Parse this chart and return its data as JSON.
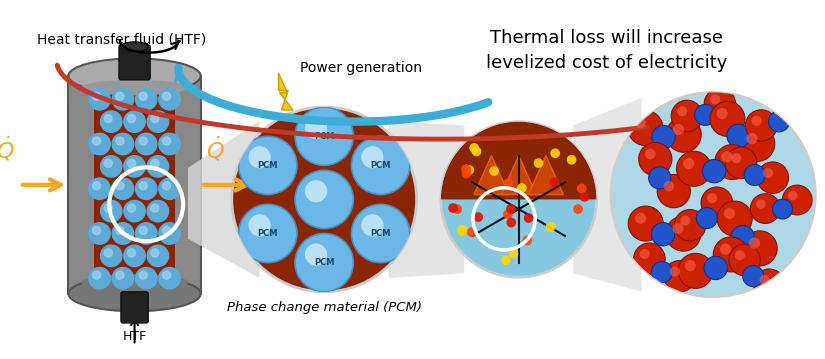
{
  "bg_color": "#ffffff",
  "title_text": "Thermal loss will increase\nlevelized cost of electricity",
  "title_fontsize": 13,
  "htf_label": "Heat transfer fluid (HTF)",
  "power_gen_label": "Power generation",
  "pcm_label": "Phase change material (PCM)",
  "htf_bottom_label": "HTF",
  "arrow_blue_color": "#3BADD6",
  "arrow_orange_color": "#F5A623",
  "lightning_color": "#F5C518",
  "arc_red_color": "#C0392B",
  "molecule_red": "#CC2200",
  "molecule_blue": "#2255CC",
  "molecule_bg": "#ACD8E8",
  "pcm_ball_color": "#5BAAD8",
  "pcm_ball_highlight": "#A8D4F0",
  "cyl_outer_color": "#888888",
  "cyl_inner_color": "#8B2500",
  "knob_color": "#222222"
}
